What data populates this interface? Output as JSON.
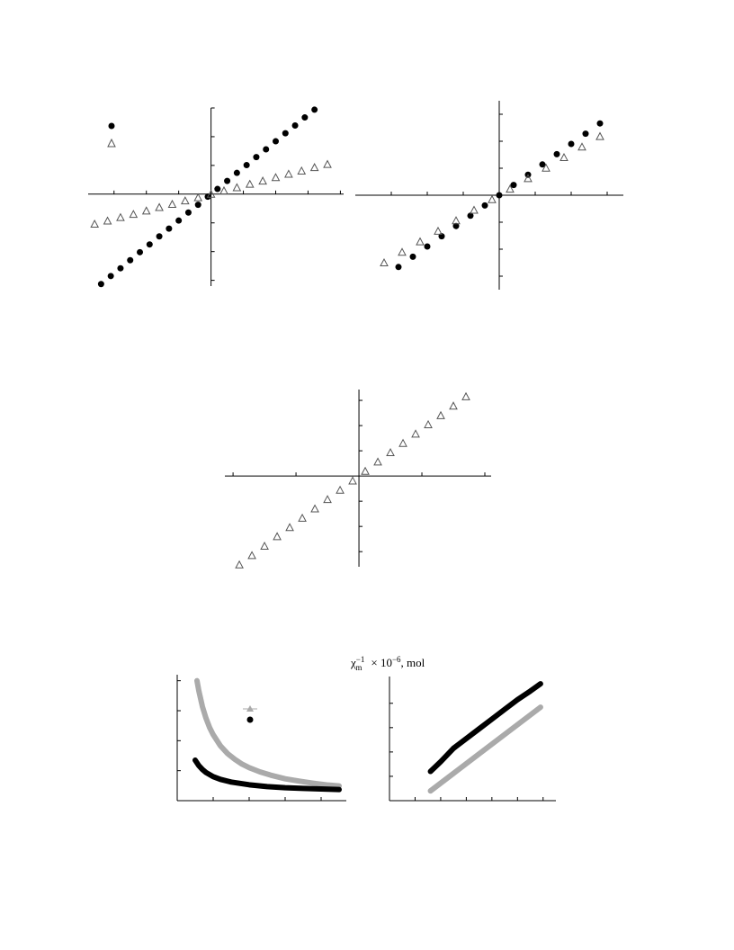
{
  "chart_data": [
    {
      "type": "scatter",
      "axes": "center",
      "xlim": [
        -3.8,
        4.1
      ],
      "ylim": [
        -3.2,
        3.0
      ],
      "xticks": [
        -3,
        -2,
        -1,
        1,
        2,
        3,
        4
      ],
      "yticks": [
        -3,
        -2,
        -1,
        1,
        2,
        3
      ],
      "series": [
        {
          "marker": "circle",
          "color": "#000000",
          "x": [
            -3.4,
            -3.1,
            -2.8,
            -2.5,
            -2.2,
            -1.9,
            -1.6,
            -1.3,
            -1.0,
            -0.7,
            -0.4,
            -0.1,
            0.2,
            0.5,
            0.8,
            1.1,
            1.4,
            1.7,
            2.0,
            2.3,
            2.6,
            2.9,
            3.2
          ],
          "values": [
            -3.13,
            -2.85,
            -2.58,
            -2.3,
            -2.02,
            -1.75,
            -1.47,
            -1.2,
            -0.92,
            -0.64,
            -0.37,
            -0.09,
            0.18,
            0.46,
            0.74,
            1.01,
            1.29,
            1.56,
            1.84,
            2.12,
            2.39,
            2.67,
            2.94
          ]
        },
        {
          "marker": "triangle",
          "color": "#555555",
          "x": [
            -3.6,
            -3.2,
            -2.8,
            -2.4,
            -2.0,
            -1.6,
            -1.2,
            -0.8,
            -0.4,
            0,
            0.4,
            0.8,
            1.2,
            1.6,
            2.0,
            2.4,
            2.8,
            3.2,
            3.6
          ],
          "values": [
            -1.04,
            -0.93,
            -0.81,
            -0.7,
            -0.58,
            -0.46,
            -0.35,
            -0.23,
            -0.12,
            0,
            0.12,
            0.23,
            0.35,
            0.46,
            0.58,
            0.7,
            0.81,
            0.93,
            1.04
          ]
        }
      ]
    },
    {
      "type": "scatter",
      "axes": "center",
      "xlim": [
        -4,
        3.45
      ],
      "ylim": [
        -3.5,
        3.5
      ],
      "xticks": [
        -3,
        -2,
        -1,
        1,
        2,
        3
      ],
      "yticks": [
        -3,
        -2,
        -1,
        1,
        2,
        3
      ],
      "series": [
        {
          "marker": "circle",
          "color": "#000000",
          "x": [
            -2.8,
            -2.4,
            -2.0,
            -1.6,
            -1.2,
            -0.8,
            -0.4,
            0,
            0.4,
            0.8,
            1.2,
            1.6,
            2.0,
            2.4,
            2.8
          ],
          "values": [
            -2.66,
            -2.28,
            -1.9,
            -1.52,
            -1.14,
            -0.76,
            -0.38,
            0,
            0.38,
            0.76,
            1.14,
            1.52,
            1.9,
            2.28,
            2.66
          ]
        },
        {
          "marker": "triangle",
          "color": "#555555",
          "x": [
            -3.2,
            -2.7,
            -2.2,
            -1.7,
            -1.2,
            -0.7,
            -0.2,
            0.3,
            0.8,
            1.3,
            1.8,
            2.3,
            2.8
          ],
          "values": [
            -2.5,
            -2.11,
            -1.72,
            -1.33,
            -0.94,
            -0.55,
            -0.16,
            0.23,
            0.62,
            1.01,
            1.4,
            1.79,
            2.18
          ]
        }
      ]
    },
    {
      "type": "scatter",
      "axes": "center",
      "xlim": [
        -2.13,
        2.1
      ],
      "ylim": [
        -3.6,
        3.43
      ],
      "xticks": [
        -2,
        -1,
        1,
        2
      ],
      "yticks": [
        -3,
        -2,
        -1,
        1,
        2,
        3
      ],
      "series": [
        {
          "marker": "triangle",
          "color": "#555555",
          "x": [
            -1.9,
            -1.7,
            -1.5,
            -1.3,
            -1.1,
            -0.9,
            -0.7,
            -0.5,
            -0.3,
            -0.1,
            0.1,
            0.3,
            0.5,
            0.7,
            0.9,
            1.1,
            1.3,
            1.5,
            1.7
          ],
          "values": [
            -3.52,
            -3.15,
            -2.78,
            -2.4,
            -2.04,
            -1.67,
            -1.3,
            -0.93,
            -0.56,
            -0.19,
            0.19,
            0.56,
            0.93,
            1.3,
            1.67,
            2.04,
            2.4,
            2.78,
            3.15
          ]
        }
      ]
    },
    {
      "type": "line",
      "axes": "box",
      "xlim": [
        0,
        4.7
      ],
      "ylim": [
        0,
        4.2
      ],
      "xticks": [
        1,
        2,
        3,
        4
      ],
      "yticks": [
        1,
        2,
        3,
        4
      ],
      "series": [
        {
          "color": "#aaaaaa",
          "x": [
            0.55,
            0.6,
            0.7,
            0.8,
            0.9,
            1.0,
            1.2,
            1.4,
            1.6,
            1.8,
            2.0,
            2.3,
            2.6,
            3.0,
            3.4,
            3.8,
            4.2,
            4.5
          ],
          "values": [
            4.0,
            3.67,
            3.14,
            2.75,
            2.44,
            2.2,
            1.83,
            1.57,
            1.38,
            1.22,
            1.1,
            0.96,
            0.85,
            0.73,
            0.65,
            0.58,
            0.52,
            0.49
          ]
        },
        {
          "color": "#000000",
          "x": [
            0.5,
            0.6,
            0.7,
            0.8,
            1.0,
            1.2,
            1.5,
            2.0,
            2.5,
            3.0,
            3.5,
            4.0,
            4.5
          ],
          "values": [
            1.35,
            1.17,
            1.04,
            0.94,
            0.8,
            0.71,
            0.62,
            0.53,
            0.47,
            0.43,
            0.41,
            0.39,
            0.37
          ]
        }
      ]
    },
    {
      "type": "line",
      "axes": "box",
      "xlim": [
        0,
        6.5
      ],
      "ylim": [
        0,
        5.1
      ],
      "xticks": [
        1,
        2,
        3,
        4,
        5,
        6
      ],
      "yticks": [
        1,
        2,
        3,
        4
      ],
      "y_label": {
        "symbol": "χ",
        "sup": "−1",
        "sub": "m",
        "factor": "× 10",
        "exp": "−6",
        "unit": ", mol"
      },
      "series": [
        {
          "color": "#000000",
          "x": [
            1.6,
            2.0,
            2.5,
            3.0,
            3.5,
            4.0,
            4.5,
            5.0,
            5.5,
            5.9
          ],
          "values": [
            1.2,
            1.6,
            2.15,
            2.55,
            2.95,
            3.35,
            3.75,
            4.15,
            4.5,
            4.8
          ]
        },
        {
          "color": "#aaaaaa",
          "x": [
            1.6,
            2.5,
            3.5,
            4.5,
            5.9
          ],
          "values": [
            0.4,
            1.12,
            1.92,
            2.72,
            3.84
          ]
        }
      ]
    }
  ]
}
